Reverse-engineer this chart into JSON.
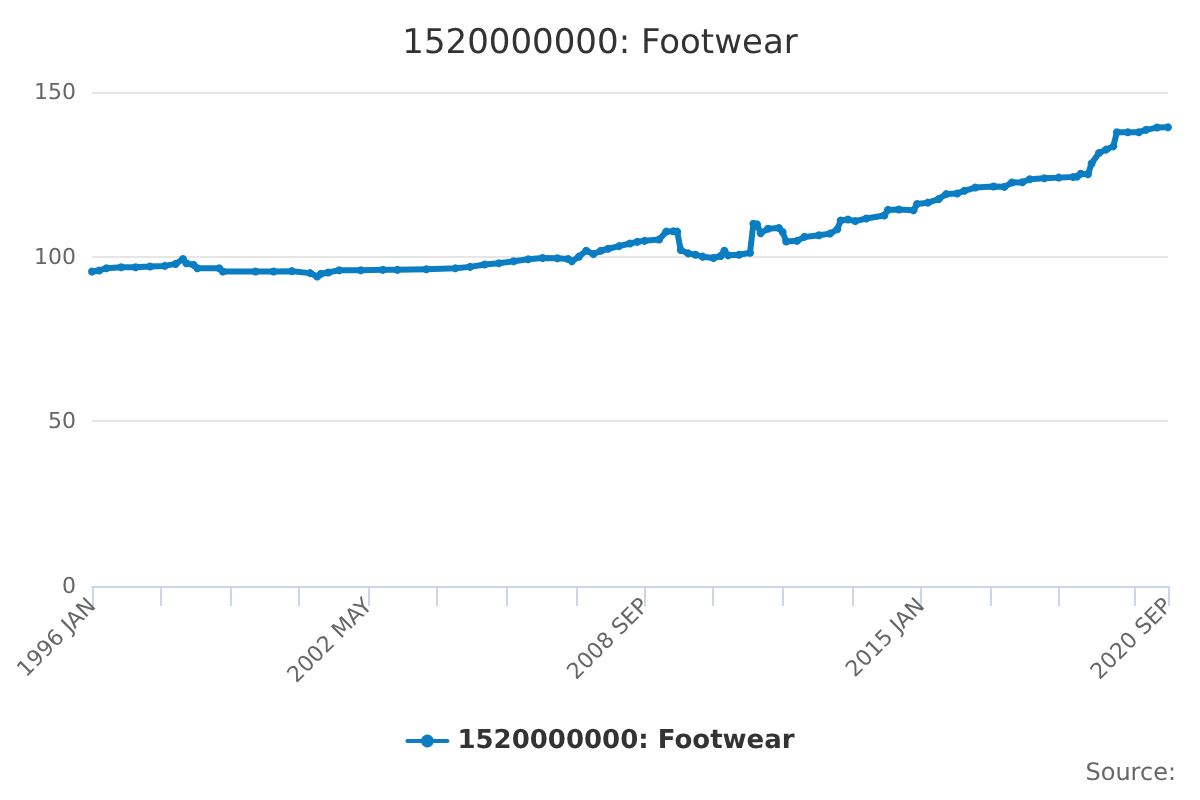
{
  "chart_data": {
    "type": "line",
    "title": "1520000000: Footwear",
    "annotations": [
      "Source:"
    ],
    "xlim": [
      "1996-01",
      "2020-09"
    ],
    "xticks": [
      {
        "value": "1996-01",
        "label": "1996 JAN"
      },
      {
        "value": "1997-08",
        "label": null
      },
      {
        "value": "1999-03",
        "label": null
      },
      {
        "value": "2000-10",
        "label": null
      },
      {
        "value": "2002-05",
        "label": "2002 MAY"
      },
      {
        "value": "2003-12",
        "label": null
      },
      {
        "value": "2005-07",
        "label": null
      },
      {
        "value": "2007-02",
        "label": null
      },
      {
        "value": "2008-09",
        "label": "2008 SEP"
      },
      {
        "value": "2010-04",
        "label": null
      },
      {
        "value": "2011-11",
        "label": null
      },
      {
        "value": "2013-06",
        "label": null
      },
      {
        "value": "2015-01",
        "label": "2015 JAN"
      },
      {
        "value": "2016-08",
        "label": null
      },
      {
        "value": "2018-03",
        "label": null
      },
      {
        "value": "2019-12",
        "label": null
      },
      {
        "value": "2020-09",
        "label": "2020 SEP"
      }
    ],
    "ylim": [
      0,
      150
    ],
    "yticks": [
      0,
      50,
      100,
      150
    ],
    "grid": "y",
    "legend": "bottom",
    "marker": "circle",
    "line_style": "solid",
    "x": [
      "1996-01",
      "1996-03",
      "1996-05",
      "1996-09",
      "1997-01",
      "1997-05",
      "1997-09",
      "1997-12",
      "1998-02",
      "1998-03",
      "1998-05",
      "1998-06",
      "1998-12",
      "1999-01",
      "1999-10",
      "2000-03",
      "2000-08",
      "2001-01",
      "2001-03",
      "2001-04",
      "2001-06",
      "2001-09",
      "2002-03",
      "2002-09",
      "2003-01",
      "2003-09",
      "2004-05",
      "2004-09",
      "2005-01",
      "2005-05",
      "2005-09",
      "2006-01",
      "2006-05",
      "2006-09",
      "2006-12",
      "2007-01",
      "2007-03",
      "2007-05",
      "2007-07",
      "2007-09",
      "2007-11",
      "2008-02",
      "2008-05",
      "2008-07",
      "2008-09",
      "2009-01",
      "2009-03",
      "2009-05",
      "2009-06",
      "2009-07",
      "2009-09",
      "2009-11",
      "2010-01",
      "2010-04",
      "2010-06",
      "2010-07",
      "2010-08",
      "2010-11",
      "2011-02",
      "2011-03",
      "2011-04",
      "2011-05",
      "2011-07",
      "2011-10",
      "2011-11",
      "2011-12",
      "2012-03",
      "2012-05",
      "2012-09",
      "2012-12",
      "2013-02",
      "2013-03",
      "2013-05",
      "2013-07",
      "2013-10",
      "2014-03",
      "2014-04",
      "2014-07",
      "2014-11",
      "2014-12",
      "2015-03",
      "2015-06",
      "2015-08",
      "2015-11",
      "2016-01",
      "2016-04",
      "2016-09",
      "2016-12",
      "2017-02",
      "2017-05",
      "2017-07",
      "2017-11",
      "2018-03",
      "2018-07",
      "2018-08",
      "2018-09",
      "2018-11",
      "2018-12",
      "2019-02",
      "2019-04",
      "2019-06",
      "2019-07",
      "2019-10",
      "2020-01",
      "2020-03",
      "2020-06",
      "2020-09"
    ],
    "series": [
      {
        "name": "1520000000: Footwear",
        "color": "#0b7dc3",
        "values": [
          95.5,
          95.8,
          96.5,
          96.8,
          96.8,
          97.0,
          97.2,
          97.8,
          99.3,
          98.0,
          97.5,
          96.5,
          96.5,
          95.5,
          95.5,
          95.5,
          95.6,
          95.0,
          94.0,
          94.8,
          95.2,
          95.9,
          95.9,
          96.0,
          96.0,
          96.2,
          96.5,
          96.9,
          97.6,
          98.0,
          98.6,
          99.2,
          99.6,
          99.5,
          99.3,
          98.6,
          100.0,
          101.8,
          100.8,
          101.8,
          102.4,
          103.2,
          104.0,
          104.5,
          104.8,
          105.2,
          107.6,
          107.7,
          107.6,
          102.0,
          101.0,
          100.6,
          100.0,
          99.6,
          100.2,
          101.8,
          100.4,
          100.6,
          101.2,
          110.0,
          109.8,
          107.1,
          108.5,
          108.7,
          107.5,
          104.6,
          104.8,
          106.0,
          106.5,
          107.0,
          108.3,
          111.0,
          111.3,
          110.8,
          111.6,
          112.5,
          114.2,
          114.3,
          114.1,
          116.0,
          116.4,
          117.5,
          119.0,
          119.2,
          120.0,
          121.0,
          121.3,
          121.2,
          122.5,
          122.6,
          123.5,
          123.8,
          124.0,
          124.2,
          124.3,
          125.2,
          125.0,
          128.3,
          131.5,
          132.5,
          133.5,
          137.8,
          137.8,
          137.8,
          138.5,
          139.2,
          139.3
        ]
      }
    ]
  }
}
